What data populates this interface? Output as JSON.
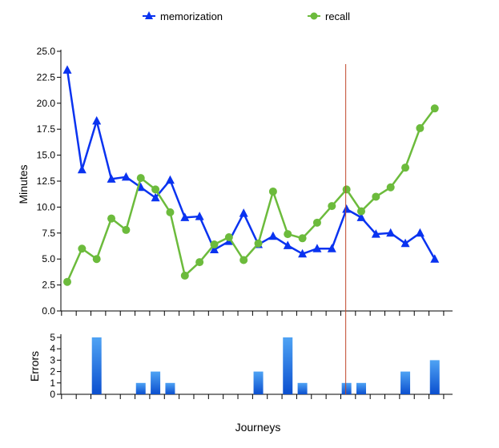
{
  "chart_data": [
    {
      "type": "line",
      "legend": [
        "memorization",
        "recall"
      ],
      "legend_position": "top",
      "ylabel": "Minutes",
      "ylim": [
        0,
        25
      ],
      "y_ticks": [
        "0.0",
        "2.5",
        "5.0",
        "7.5",
        "10.0",
        "12.5",
        "15.0",
        "17.5",
        "20.0",
        "22.5",
        "25.0"
      ],
      "x": [
        1,
        2,
        3,
        4,
        5,
        6,
        7,
        8,
        9,
        10,
        11,
        12,
        13,
        14,
        15,
        16,
        17,
        18,
        19,
        20,
        21,
        22,
        23,
        24,
        25,
        26,
        27
      ],
      "series": [
        {
          "name": "memorization",
          "color": "#0a33f0",
          "marker": "triangle",
          "values": [
            23.2,
            13.6,
            18.3,
            12.7,
            12.9,
            11.9,
            10.9,
            12.6,
            9.0,
            9.1,
            5.9,
            6.7,
            9.4,
            6.4,
            7.2,
            6.3,
            5.5,
            6.0,
            6.0,
            9.8,
            9.0,
            7.4,
            7.5,
            6.5,
            7.5,
            5.0,
            null
          ]
        },
        {
          "name": "recall",
          "color": "#6cbb3c",
          "marker": "circle",
          "values": [
            2.8,
            6.0,
            5.0,
            8.9,
            7.8,
            12.8,
            11.7,
            9.5,
            3.4,
            4.7,
            6.4,
            7.1,
            4.9,
            6.5,
            11.5,
            7.4,
            7.0,
            8.5,
            10.1,
            11.7,
            9.6,
            11.0,
            11.9,
            13.8,
            17.6,
            19.5,
            null
          ]
        }
      ],
      "vertical_marker_after_x": 20,
      "vertical_marker_color": "#c0472b",
      "grid": false
    },
    {
      "type": "bar",
      "xlabel": "Journeys",
      "ylabel": "Errors",
      "ylim": [
        0,
        5
      ],
      "y_ticks": [
        "0",
        "1",
        "2",
        "3",
        "4",
        "5"
      ],
      "x": [
        1,
        2,
        3,
        4,
        5,
        6,
        7,
        8,
        9,
        10,
        11,
        12,
        13,
        14,
        15,
        16,
        17,
        18,
        19,
        20,
        21,
        22,
        23,
        24,
        25,
        26,
        27
      ],
      "values": [
        0,
        5,
        0,
        0,
        1,
        2,
        1,
        0,
        0,
        0,
        0,
        0,
        2,
        0,
        5,
        1,
        0,
        0,
        1,
        1,
        0,
        0,
        2,
        0,
        3,
        0,
        0
      ],
      "color": "#1b6fe0",
      "grid": false
    }
  ]
}
